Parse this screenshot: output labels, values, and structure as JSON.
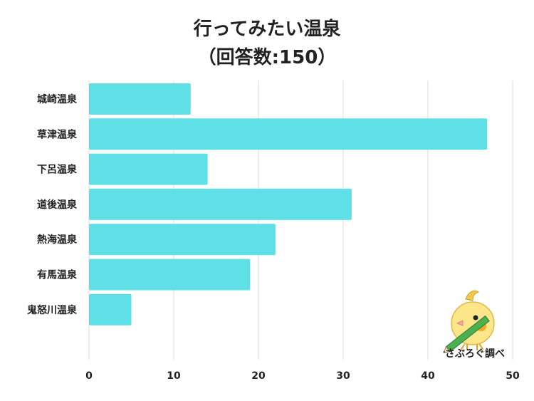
{
  "chart_data": {
    "type": "bar",
    "orientation": "horizontal",
    "title": "行ってみたい温泉",
    "subtitle": "（回答数:150）",
    "categories": [
      "城崎温泉",
      "草津温泉",
      "下呂温泉",
      "道後温泉",
      "熱海温泉",
      "有馬温泉",
      "鬼怒川温泉"
    ],
    "values": [
      12,
      47,
      14,
      31,
      22,
      19,
      5
    ],
    "xlim": [
      0,
      50
    ],
    "xticks": [
      0,
      10,
      20,
      30,
      40,
      50
    ],
    "grid": true,
    "bar_color": "#5ee0e6"
  },
  "watermark": {
    "text": "さぶろぐ調べ",
    "icon": "bird-with-pencil-icon"
  }
}
